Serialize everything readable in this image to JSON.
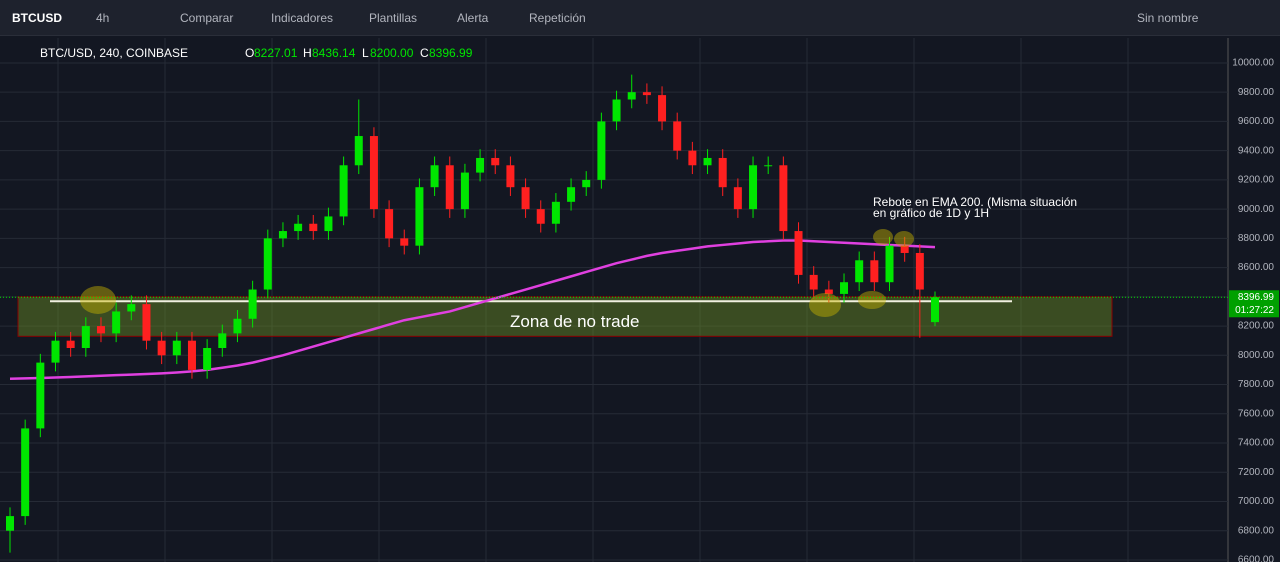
{
  "toolbar": {
    "symbol": "BTCUSD",
    "interval": "4h",
    "compare": "Comparar",
    "indicators": "Indicadores",
    "templates": "Plantillas",
    "alert": "Alerta",
    "replay": "Repetición",
    "layout_name": "Sin nombre"
  },
  "chart_data": {
    "type": "candlestick",
    "legend": {
      "pair": "BTC/USD, 240, COINBASE",
      "O": "O",
      "H": "H",
      "L": "L",
      "C": "C",
      "open": "8227.01",
      "high": "8436.14",
      "low": "8200.00",
      "close": "8396.99"
    },
    "up_color": "#00e600",
    "down_color": "#ff2020",
    "open": [
      6800,
      6900,
      7500,
      7950,
      8100,
      8050,
      8200,
      8150,
      8300,
      8350,
      8100,
      8000,
      8100,
      7900,
      8050,
      8150,
      8250,
      8450,
      8800,
      8850,
      8900,
      8850,
      8950,
      9300,
      9500,
      9000,
      8800,
      8750,
      9150,
      9300,
      9000,
      9250,
      9350,
      9300,
      9150,
      9000,
      8900,
      9050,
      9150,
      9200,
      9600,
      9750,
      9800,
      9780,
      9600,
      9400,
      9300,
      9350,
      9150,
      9000,
      9300,
      9300,
      8850,
      8550,
      8450,
      8420,
      8500,
      8650,
      8500,
      8750,
      8700,
      8227.01
    ],
    "high": [
      6960,
      7560,
      8010,
      8160,
      8160,
      8260,
      8260,
      8360,
      8410,
      8410,
      8160,
      8160,
      8160,
      8110,
      8210,
      8310,
      8510,
      8860,
      8910,
      8960,
      8960,
      9010,
      9360,
      9750,
      9560,
      9060,
      8860,
      9210,
      9360,
      9360,
      9310,
      9410,
      9410,
      9360,
      9210,
      9060,
      9110,
      9210,
      9260,
      9660,
      9810,
      9920,
      9860,
      9840,
      9660,
      9460,
      9410,
      9410,
      9210,
      9360,
      9360,
      9360,
      8910,
      8610,
      8510,
      8560,
      8710,
      8710,
      8810,
      8810,
      8760,
      8436.14
    ],
    "low": [
      6650,
      6840,
      7440,
      7890,
      7990,
      7990,
      8090,
      8090,
      8240,
      8040,
      7940,
      7940,
      7840,
      7840,
      7990,
      8090,
      8190,
      8390,
      8740,
      8790,
      8790,
      8790,
      8890,
      9240,
      8940,
      8740,
      8690,
      8690,
      9090,
      8940,
      8940,
      9190,
      9240,
      9090,
      8940,
      8840,
      8840,
      8990,
      9090,
      9140,
      9540,
      9690,
      9720,
      9540,
      9340,
      9240,
      9240,
      9090,
      8940,
      8940,
      9240,
      8790,
      8490,
      8390,
      8360,
      8360,
      8440,
      8440,
      8440,
      8640,
      8120,
      8200
    ],
    "close": [
      6900,
      7500,
      7950,
      8100,
      8050,
      8200,
      8150,
      8300,
      8350,
      8100,
      8000,
      8100,
      7900,
      8050,
      8150,
      8250,
      8450,
      8800,
      8850,
      8900,
      8850,
      8950,
      9300,
      9500,
      9000,
      8800,
      8750,
      9150,
      9300,
      9000,
      9250,
      9350,
      9300,
      9150,
      9000,
      8900,
      9050,
      9150,
      9200,
      9600,
      9750,
      9800,
      9780,
      9600,
      9400,
      9300,
      9350,
      9150,
      9000,
      9300,
      9300,
      8850,
      8550,
      8450,
      8420,
      8500,
      8650,
      8500,
      8750,
      8700,
      8450,
      8396.99
    ],
    "ema200": [
      7840,
      7842,
      7845,
      7848,
      7852,
      7856,
      7860,
      7864,
      7868,
      7872,
      7876,
      7882,
      7890,
      7900,
      7915,
      7930,
      7950,
      7975,
      8000,
      8030,
      8060,
      8090,
      8120,
      8150,
      8180,
      8210,
      8240,
      8260,
      8280,
      8300,
      8330,
      8360,
      8390,
      8420,
      8450,
      8480,
      8510,
      8540,
      8570,
      8600,
      8630,
      8655,
      8680,
      8700,
      8715,
      8730,
      8745,
      8755,
      8765,
      8775,
      8780,
      8785,
      8785,
      8780,
      8775,
      8770,
      8765,
      8760,
      8755,
      8750,
      8745,
      8740
    ],
    "ema200_color": "#e040e0",
    "zone": {
      "label": "Zona de no trade",
      "low": 8130,
      "high": 8400,
      "color": "#6b8e23"
    },
    "support_line": 8370,
    "annotation": [
      "Rebote en EMA 200. (Misma situación",
      "en gráfico de 1D y 1H"
    ],
    "last_price_label": "8396.99",
    "timer": "01:27:22",
    "ylim": [
      6586,
      10157
    ],
    "yticks": [
      {
        "value": 6600,
        "label": "6600.00"
      },
      {
        "value": 6800,
        "label": "6800.00"
      },
      {
        "value": 7000,
        "label": "7000.00"
      },
      {
        "value": 7200,
        "label": "7200.00"
      },
      {
        "value": 7400,
        "label": "7400.00"
      },
      {
        "value": 7600,
        "label": "7600.00"
      },
      {
        "value": 7800,
        "label": "7800.00"
      },
      {
        "value": 8000,
        "label": "8000.00"
      },
      {
        "value": 8200,
        "label": "8200.00"
      },
      {
        "value": 8400,
        "label": "8400.00"
      },
      {
        "value": 8600,
        "label": "8600.00"
      },
      {
        "value": 8800,
        "label": "8800.00"
      },
      {
        "value": 9000,
        "label": "9000.00"
      },
      {
        "value": 9200,
        "label": "9200.00"
      },
      {
        "value": 9400,
        "label": "9400.00"
      },
      {
        "value": 9600,
        "label": "9600.00"
      },
      {
        "value": 9800,
        "label": "9800.00"
      },
      {
        "value": 10000,
        "label": "10000.00"
      }
    ],
    "grid": true
  }
}
